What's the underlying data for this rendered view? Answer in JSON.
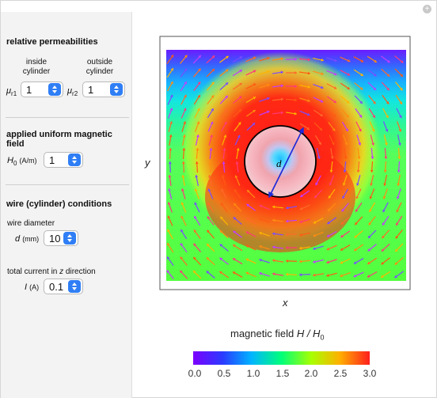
{
  "controls": {
    "permeability": {
      "title": "relative permeabilities",
      "inside_label": "inside cylinder",
      "outside_label": "outside cylinder",
      "mu_symbol": "μ",
      "mu_r1_sub": "r1",
      "mu_r2_sub": "r2",
      "mu_r1_value": "1",
      "mu_r2_value": "1"
    },
    "field": {
      "title": "applied uniform magnetic field",
      "h0_symbol": "H",
      "h0_sub": "0",
      "h0_unit": "(A/m)",
      "h0_value": "1"
    },
    "wire": {
      "title": "wire (cylinder) conditions",
      "diameter_label": "wire diameter",
      "d_symbol": "d",
      "d_unit": "(mm)",
      "d_value": "10",
      "current_label": "total current in z direction",
      "i_symbol": "I",
      "i_unit": "(A)",
      "i_value": "0.1"
    }
  },
  "plot": {
    "x_label": "x",
    "y_label": "y",
    "diameter_label": "d",
    "colorbar_title_prefix": "magnetic field ",
    "colorbar_title_math": "H / H",
    "colorbar_title_sub": "0",
    "colorbar_ticks": [
      "0.0",
      "0.5",
      "1.0",
      "1.5",
      "2.0",
      "2.5",
      "3.0"
    ],
    "colors": {
      "low": "#7b00ff",
      "mid": "#00ff50",
      "high": "#ff1e1e",
      "arrow_dark": "#1f2bd8"
    }
  }
}
